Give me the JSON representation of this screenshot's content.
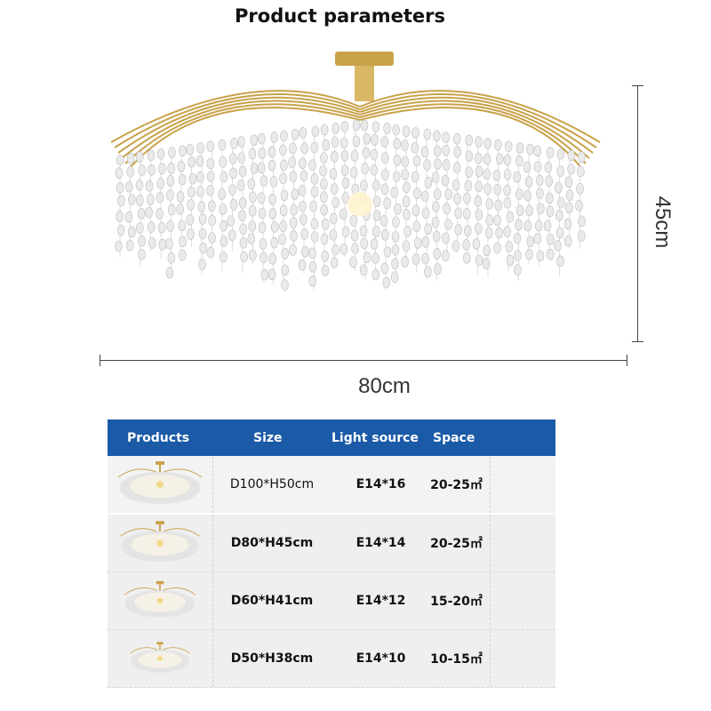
{
  "title": "Product parameters",
  "dimensions": {
    "width_label": "80cm",
    "height_label": "45cm"
  },
  "colors": {
    "header": "#1a5aa6",
    "gold": "#c9a24a",
    "row_bg": "#efefef"
  },
  "table": {
    "headers": [
      "Products",
      "Size",
      "Light source",
      "Space"
    ],
    "rows": [
      {
        "size": "D100*H50cm",
        "light": "E14*16",
        "space": "20-25㎡"
      },
      {
        "size": "D80*H45cm",
        "light": "E14*14",
        "space": "20-25㎡"
      },
      {
        "size": "D60*H41cm",
        "light": "E14*12",
        "space": "15-20㎡"
      },
      {
        "size": "D50*H38cm",
        "light": "E14*10",
        "space": "10-15㎡"
      }
    ]
  }
}
